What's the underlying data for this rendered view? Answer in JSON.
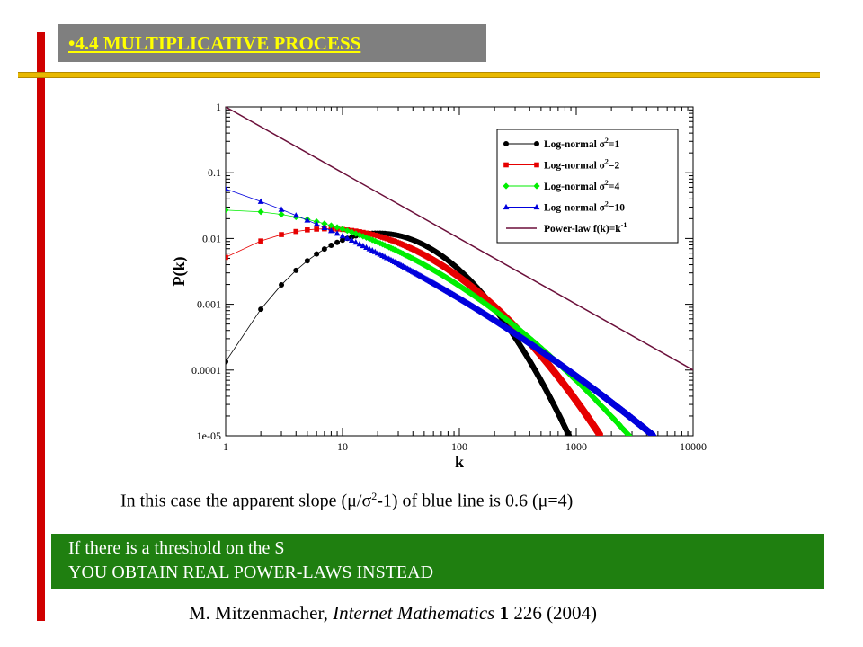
{
  "slide": {
    "title": "•4.4 MULTIPLICATIVE PROCESS",
    "caption": {
      "prefix": "In this case the apparent slope (",
      "mu": "μ",
      "slash": "/",
      "sigma": "σ",
      "sup": "2",
      "mid": "-1) of blue line is 0.6 (",
      "mu_eq": "μ",
      "eq": "=4)"
    },
    "box_lines": [
      "If there is a threshold on the S",
      "YOU OBTAIN REAL POWER-LAWS INSTEAD"
    ],
    "citation": {
      "author": "M. Mitzenmacher, ",
      "journal": "Internet Mathematics",
      "volume": " 1",
      "rest": " 226 (2004)"
    },
    "colors": {
      "accent_bar": "#d00000",
      "rule": "#e8b800",
      "title_bg": "#7f7f7f",
      "title_text": "#ffff00",
      "box_bg": "#1f7f10"
    }
  },
  "chart_data": {
    "type": "line",
    "xscale": "log",
    "yscale": "log",
    "xlim": [
      1,
      10000
    ],
    "ylim": [
      1e-05,
      1
    ],
    "xlabel": "k",
    "ylabel": "P(k)",
    "xticks": [
      "1",
      "10",
      "100",
      "1000",
      "10000"
    ],
    "yticks": [
      "1",
      "0.1",
      "0.01",
      "0.001",
      "0.0001",
      "1e-05"
    ],
    "legend_position": "top-right",
    "series": [
      {
        "name": "Log-normal σ²=1",
        "label_prefix": "Log-normal σ",
        "label_suffix": "=1",
        "color": "#000000",
        "marker": "circle",
        "mu": 4,
        "sigma2": 1
      },
      {
        "name": "Log-normal σ²=2",
        "label_prefix": "Log-normal σ",
        "label_suffix": "=2",
        "color": "#e60000",
        "marker": "square",
        "mu": 4,
        "sigma2": 2
      },
      {
        "name": "Log-normal σ²=4",
        "label_prefix": "Log-normal σ",
        "label_suffix": "=4",
        "color": "#00ee00",
        "marker": "diamond",
        "mu": 4,
        "sigma2": 4
      },
      {
        "name": "Log-normal σ²=10",
        "label_prefix": "Log-normal σ",
        "label_suffix": "=10",
        "color": "#0000dd",
        "marker": "triangle",
        "mu": 4,
        "sigma2": 10
      },
      {
        "name": "Power-law f(k)=k⁻¹",
        "label_prefix": "Power-law f(k)=k",
        "label_suffix": "",
        "label_sup": "-1",
        "color": "#6b0f3a",
        "marker": "none",
        "exponent": -1
      }
    ]
  }
}
